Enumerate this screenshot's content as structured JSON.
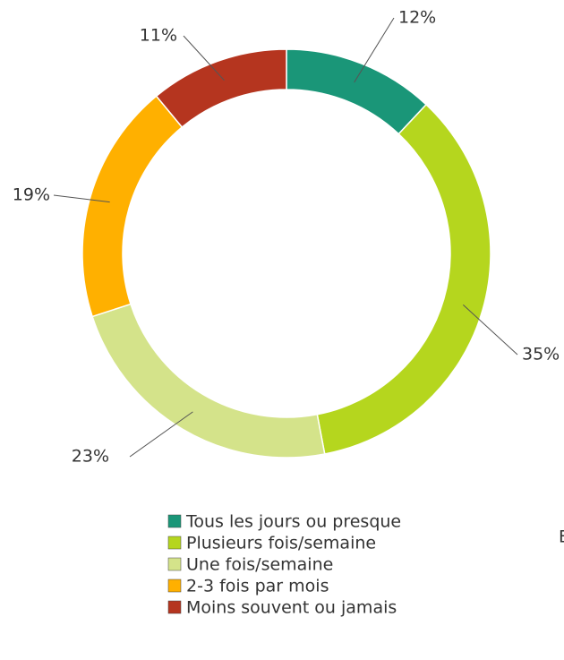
{
  "chart_data": {
    "type": "donut",
    "categories": [
      "Tous les jours ou presque",
      "Plusieurs fois/semaine",
      "Une fois/semaine",
      "2-3 fois par mois",
      "Moins souvent ou jamais"
    ],
    "values": [
      12,
      35,
      23,
      19,
      11
    ],
    "value_labels": [
      "12%",
      "35%",
      "23%",
      "19%",
      "11%"
    ],
    "colors": [
      "#1a9678",
      "#b5d61e",
      "#d4e38a",
      "#ffb000",
      "#b5351f"
    ],
    "legend": "bottom",
    "annotation": "E"
  }
}
